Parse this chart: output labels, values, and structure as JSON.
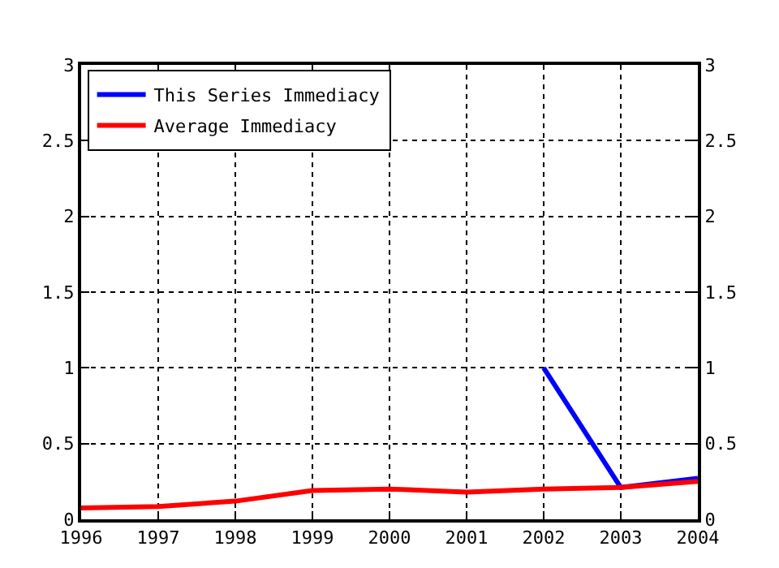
{
  "chart_data": {
    "type": "line",
    "x": [
      1996,
      1997,
      1998,
      1999,
      2000,
      2001,
      2002,
      2003,
      2004
    ],
    "series": [
      {
        "name": "This Series Immediacy",
        "color": "#0000ff",
        "values": [
          null,
          null,
          null,
          null,
          null,
          null,
          1.0,
          0.21,
          0.27
        ]
      },
      {
        "name": "Average Immediacy",
        "color": "#ff0000",
        "values": [
          0.075,
          0.085,
          0.12,
          0.19,
          0.2,
          0.18,
          0.2,
          0.21,
          0.25
        ]
      }
    ],
    "xlim": [
      1996,
      2004
    ],
    "xticks": [
      1996,
      1997,
      1998,
      1999,
      2000,
      2001,
      2002,
      2003,
      2004
    ],
    "ylim": [
      0,
      3
    ],
    "yticks": [
      0,
      0.5,
      1,
      1.5,
      2,
      2.5,
      3
    ],
    "y2lim": [
      0,
      3
    ],
    "y2ticks": [
      0,
      0.5,
      1,
      1.5,
      2,
      2.5,
      3
    ],
    "grid": true,
    "legend": "top left",
    "marker": "none",
    "line_style": "solid"
  }
}
